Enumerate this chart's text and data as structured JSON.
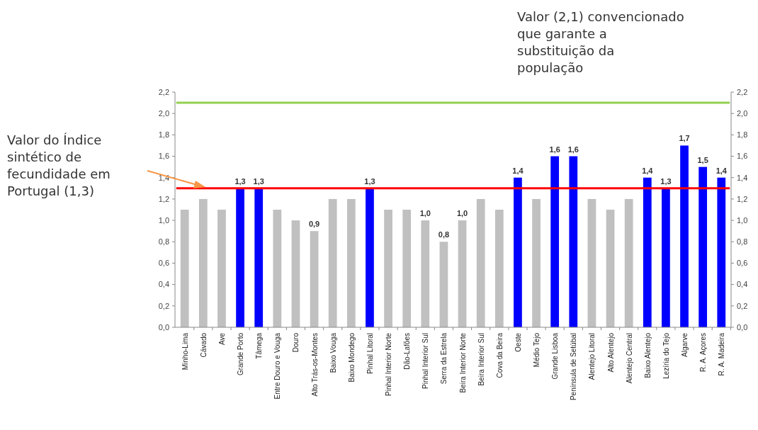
{
  "chart_data": {
    "type": "bar",
    "categories": [
      "Minho-Lima",
      "Cávado",
      "Ave",
      "Grande Porto",
      "Tâmega",
      "Entre Douro e Vouga",
      "Douro",
      "Alto Trás-os-Montes",
      "Baixo Vouga",
      "Baixo Mondego",
      "Pinhal Litoral",
      "Pinhal Interior Norte",
      "Dão-Lafões",
      "Pinhal Interior Sul",
      "Serra da Estrela",
      "Beira Interior Norte",
      "Beira Interior Sul",
      "Cova da Beira",
      "Oeste",
      "Médio Tejo",
      "Grande Lisboa",
      "Península de Setúbal",
      "Alentejo Litoral",
      "Alto Alentejo",
      "Alentejo Central",
      "Baixo Alentejo",
      "Lezíria do Tejo",
      "Algarve",
      "R. A. Açores",
      "R. A. Madeira"
    ],
    "values": [
      1.1,
      1.2,
      1.1,
      1.3,
      1.3,
      1.1,
      1.0,
      0.9,
      1.2,
      1.2,
      1.3,
      1.1,
      1.1,
      1.0,
      0.8,
      1.0,
      1.2,
      1.1,
      1.4,
      1.2,
      1.6,
      1.6,
      1.2,
      1.1,
      1.2,
      1.4,
      1.3,
      1.7,
      1.5,
      1.4
    ],
    "value_labels": [
      null,
      null,
      null,
      "1,3",
      "1,3",
      null,
      null,
      "0,9",
      null,
      null,
      "1,3",
      null,
      null,
      "1,0",
      "0,8",
      "1,0",
      null,
      null,
      "1,4",
      null,
      "1,6",
      "1,6",
      null,
      null,
      null,
      "1,4",
      "1,3",
      "1,7",
      "1,5",
      "1,4"
    ],
    "colors": [
      "#c0c0c0",
      "#c0c0c0",
      "#c0c0c0",
      "#0000ff",
      "#0000ff",
      "#c0c0c0",
      "#c0c0c0",
      "#c0c0c0",
      "#c0c0c0",
      "#c0c0c0",
      "#0000ff",
      "#c0c0c0",
      "#c0c0c0",
      "#c0c0c0",
      "#c0c0c0",
      "#c0c0c0",
      "#c0c0c0",
      "#c0c0c0",
      "#0000ff",
      "#c0c0c0",
      "#0000ff",
      "#0000ff",
      "#c0c0c0",
      "#c0c0c0",
      "#c0c0c0",
      "#0000ff",
      "#0000ff",
      "#0000ff",
      "#0000ff",
      "#0000ff"
    ],
    "ylim": [
      0,
      2.2
    ],
    "yticks": [
      {
        "value": 0,
        "label": "0,0"
      },
      {
        "value": 0.2,
        "label": "0,2"
      },
      {
        "value": 0.4,
        "label": "0,4"
      },
      {
        "value": 0.6,
        "label": "0,6"
      },
      {
        "value": 0.8,
        "label": "0,8"
      },
      {
        "value": 1.0,
        "label": "1,0"
      },
      {
        "value": 1.2,
        "label": "1,2"
      },
      {
        "value": 1.4,
        "label": "1,4"
      },
      {
        "value": 1.6,
        "label": "1,6"
      },
      {
        "value": 1.8,
        "label": "1,8"
      },
      {
        "value": 2.0,
        "label": "2,0"
      },
      {
        "value": 2.2,
        "label": "2,2"
      }
    ],
    "y2lim": [
      0,
      2.2
    ],
    "y2ticks": [
      {
        "value": 0,
        "label": "0,0"
      },
      {
        "value": 0.2,
        "label": "0,2"
      },
      {
        "value": 0.4,
        "label": "0,4"
      },
      {
        "value": 0.6,
        "label": "0,6"
      },
      {
        "value": 0.8,
        "label": "0,8"
      },
      {
        "value": 1.0,
        "label": "1,0"
      },
      {
        "value": 1.2,
        "label": "1,2"
      },
      {
        "value": 1.4,
        "label": "1,4"
      },
      {
        "value": 1.6,
        "label": "1,6"
      },
      {
        "value": 1.8,
        "label": "1,8"
      },
      {
        "value": 2.0,
        "label": "2,0"
      },
      {
        "value": 2.2,
        "label": "2,2"
      }
    ],
    "ref_lines": [
      {
        "axis": "y",
        "value": 2.1,
        "color": "#92d050"
      },
      {
        "axis": "y",
        "value": 1.3,
        "color": "#ff0000"
      }
    ],
    "annotations": [
      "Valor (2,1) convencionado\nque garante a\nsubstituição da\npopulação",
      "Valor do Índice\nsintético de\nfecundidade em\nPortugal (1,3)"
    ],
    "grid": false
  }
}
